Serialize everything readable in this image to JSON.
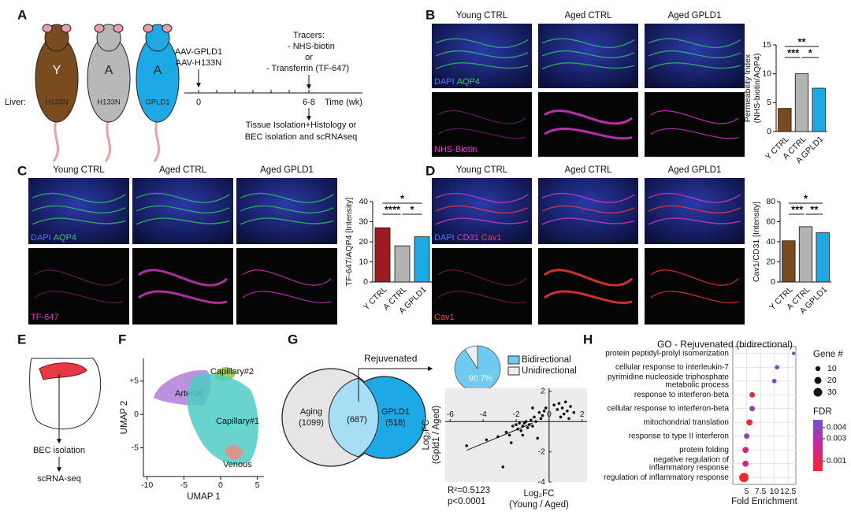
{
  "panel_labels": [
    "A",
    "B",
    "C",
    "D",
    "E",
    "F",
    "G",
    "H"
  ],
  "panel_a": {
    "mice": [
      {
        "letter": "Y",
        "liver": "H133N"
      },
      {
        "letter": "A",
        "liver": "H133N"
      },
      {
        "letter": "A",
        "liver": "GPLD1"
      }
    ],
    "liver_label": "Liver:",
    "injection": [
      "AAV-GPLD1",
      "AAV-H133N"
    ],
    "tracers": [
      "Tracers:",
      "- NHS-biotin",
      "or",
      "- Transferrin (TF-647)"
    ],
    "timeline_start": "0",
    "timeline_end": "6-8",
    "timeline_unit": "Time (wk)",
    "outcome": [
      "Tissue Isolation+Histology or",
      "BEC isolation and scRNAseq"
    ]
  },
  "panel_b": {
    "columns": [
      "Young CTRL",
      "Aged CTRL",
      "Aged GPLD1"
    ],
    "stain_top": [
      "DAPI",
      "AQP4"
    ],
    "stain_bottom": "NHS-Biotin"
  },
  "panel_c": {
    "columns": [
      "Young CTRL",
      "Aged CTRL",
      "Aged GPLD1"
    ],
    "stain_top": [
      "DAPI",
      "AQP4"
    ],
    "stain_bottom": "TF-647"
  },
  "panel_d": {
    "columns": [
      "Young CTRL",
      "Aged CTRL",
      "Aged GPLD1"
    ],
    "stain_top": [
      "DAPI",
      "CD31",
      "Cav1"
    ],
    "stain_bottom": "Cav1"
  },
  "panel_e": {
    "steps": [
      "BEC isolation",
      "scRNA-seq"
    ]
  },
  "panel_g": {
    "rejuvenated": "Rejuvenated",
    "venn_left": [
      "Aging",
      "(1099)"
    ],
    "venn_overlap": "(687)",
    "venn_right": [
      "GPLD1",
      "(518)"
    ]
  },
  "chart_data": [
    {
      "type": "bar",
      "ylabel": [
        "Permeability Index",
        "(NHS-biotin/AQP4)"
      ],
      "categories": [
        "Y CTRL",
        "A CTRL",
        "A GPLD1"
      ],
      "values": [
        4,
        10,
        7.5
      ],
      "colors": [
        "#7a4b1f",
        "#b3b3b3",
        "#1ca9e6"
      ],
      "ylim": [
        0,
        15
      ],
      "yticks": [
        0,
        5,
        10,
        15
      ],
      "significance": [
        "**",
        "***",
        "*"
      ]
    },
    {
      "type": "bar",
      "ylabel": [
        "TF-647/AQP4 [Intensity]"
      ],
      "categories": [
        "Y CTRL",
        "A CTRL",
        "A GPLD1"
      ],
      "values": [
        27,
        18,
        22.5
      ],
      "colors": [
        "#9e1b22",
        "#b3b3b3",
        "#1ca9e6"
      ],
      "ylim": [
        0,
        40
      ],
      "yticks": [
        0,
        10,
        20,
        30,
        40
      ],
      "significance": [
        "*",
        "****",
        "*"
      ]
    },
    {
      "type": "bar",
      "ylabel": [
        "Cav1/CD31 [Intensity]"
      ],
      "categories": [
        "Y CTRL",
        "A CTRL",
        "A GPLD1"
      ],
      "values": [
        41,
        55,
        49
      ],
      "colors": [
        "#7a4b1f",
        "#b3b3b3",
        "#1ca9e6"
      ],
      "ylim": [
        0,
        80
      ],
      "yticks": [
        0,
        20,
        40,
        60,
        80
      ],
      "significance": [
        "*",
        "***",
        "**"
      ]
    },
    {
      "type": "umap",
      "xlabel": "UMAP 1",
      "ylabel": "UMAP 2",
      "xlim": [
        -10.5,
        5.9
      ],
      "ylim": [
        -9.3,
        8.4
      ],
      "xticks": [
        -10,
        -5,
        0,
        5
      ],
      "yticks": [
        {
          "value": 5,
          "label": "+5"
        },
        0,
        -5
      ],
      "clusters": [
        "Capillary#2",
        "Arterial",
        "Capillary#1",
        "Venous"
      ],
      "colors": [
        "#8cc63f",
        "#b07fd8",
        "#4ecdc4",
        "#f08a80"
      ]
    },
    {
      "type": "pie",
      "categories": [
        "Bidirectional",
        "Unidirectional"
      ],
      "values": [
        90.7,
        9.3
      ],
      "value_labels": [
        "90.7%",
        null
      ],
      "colors": [
        "#6fcbf0",
        "#eeeeee"
      ]
    },
    {
      "type": "scatter",
      "xlabel": [
        "Log₂FC",
        "(Young / Aged)"
      ],
      "ylabel": [
        "Log₂FC",
        "(Gpld1 / Aged)"
      ],
      "xlim": [
        -6.3,
        2.3
      ],
      "ylim": [
        -4,
        2.2
      ],
      "xticks": [
        -6,
        -4,
        -2,
        0,
        2
      ],
      "yticks": [
        2,
        -2,
        -4
      ],
      "x": [
        -5.0,
        -3.8,
        -3.1,
        -2.6,
        -2.4,
        -2.2,
        -2.0,
        -1.9,
        -1.8,
        -1.7,
        -1.6,
        -1.5,
        -1.4,
        -1.3,
        -1.2,
        -1.1,
        -1.0,
        -0.9,
        -0.8,
        -0.6,
        -0.5,
        -0.3,
        -0.2,
        0.3,
        0.5,
        0.6,
        0.8,
        0.9,
        1.0,
        1.1,
        1.3,
        1.5,
        -2.3,
        -1.6,
        -0.7,
        -0.4,
        -2.8,
        0.7,
        1.2,
        -1.0
      ],
      "y": [
        -1.6,
        -1.2,
        -1.0,
        -0.7,
        -0.9,
        -0.3,
        -0.2,
        -0.5,
        -0.1,
        -0.6,
        -0.3,
        -0.1,
        0.0,
        -0.4,
        -0.2,
        0.1,
        -0.3,
        0.3,
        0.0,
        0.6,
        0.2,
        0.7,
        0.9,
        1.1,
        0.8,
        1.2,
        0.9,
        0.5,
        1.3,
        0.7,
        1.0,
        0.6,
        -1.4,
        -0.9,
        -1.1,
        0.4,
        -3.0,
        0.3,
        0.2,
        0.9
      ],
      "fit": {
        "x": [
          -5.0,
          -1.0
        ],
        "y": [
          -1.9,
          -0.1
        ]
      },
      "annotations": [
        "R²=0.5123",
        "p<0.0001"
      ]
    },
    {
      "type": "dot",
      "title": "GO - Rejuvenated (bidirectional)",
      "xlabel": "Fold Enrichment",
      "categories": [
        [
          "protein peptidyl-prolyl isomerization"
        ],
        [
          "cellular response to interleukin-7"
        ],
        [
          "pyrimidine nucleoside triphosphate",
          "metabolic process"
        ],
        [
          "response to interferon-beta"
        ],
        [
          "cellular response to interferon-beta"
        ],
        [
          "mitochondrial translation"
        ],
        [
          "response to type II interferon"
        ],
        [
          "protein folding"
        ],
        [
          "negative regulation of",
          "inflammatory response"
        ],
        [
          "regulation of inflammatory response"
        ]
      ],
      "values": [
        13.5,
        10.5,
        10,
        6,
        6,
        5.5,
        5,
        4.8,
        4.8,
        4.5
      ],
      "sizes": [
        5,
        8,
        8,
        12,
        12,
        15,
        12,
        15,
        15,
        35
      ],
      "fdr": [
        0.0045,
        0.0042,
        0.0043,
        0.0005,
        0.0038,
        0.0003,
        0.0038,
        0.002,
        0.002,
        0.0001
      ],
      "xlim": [
        2.5,
        13.9
      ],
      "xticks": [
        5,
        7.5,
        10,
        12.5
      ],
      "size_legend": {
        "title": "Gene #",
        "values": [
          10,
          20,
          30
        ]
      },
      "color_legend": {
        "title": "FDR",
        "lim": [
          0.0001,
          0.0047
        ],
        "ticks": [
          0.004,
          0.003,
          0.001
        ]
      }
    }
  ]
}
